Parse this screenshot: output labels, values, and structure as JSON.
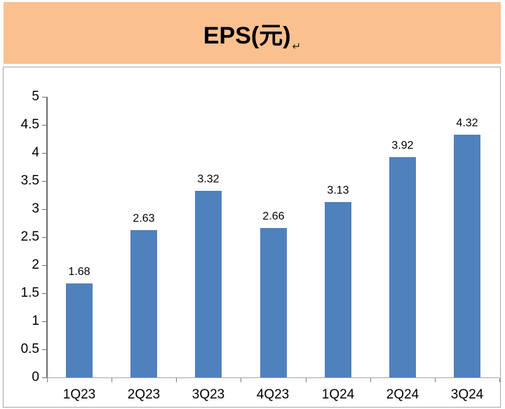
{
  "header": {
    "title": "EPS(元)",
    "return_mark": "↵",
    "background_color": "#FAC090"
  },
  "chart_data": {
    "type": "bar",
    "title": "EPS(元)",
    "categories": [
      "1Q23",
      "2Q23",
      "3Q23",
      "4Q23",
      "1Q24",
      "2Q24",
      "3Q24"
    ],
    "values": [
      1.68,
      2.63,
      3.32,
      2.66,
      3.13,
      3.92,
      4.32
    ],
    "data_labels": [
      "1.68",
      "2.63",
      "3.32",
      "2.66",
      "3.13",
      "3.92",
      "4.32"
    ],
    "xlabel": "",
    "ylabel": "",
    "ylim": [
      0,
      5
    ],
    "ytick_step": 0.5,
    "ytick_labels": [
      "0",
      "0.5",
      "1",
      "1.5",
      "2",
      "2.5",
      "3",
      "3.5",
      "4",
      "4.5",
      "5"
    ],
    "grid": false,
    "legend": null,
    "bar_color": "#4F81BD",
    "axis_color": "#6E6E6E",
    "baseline_color": "#A6A6A6"
  }
}
